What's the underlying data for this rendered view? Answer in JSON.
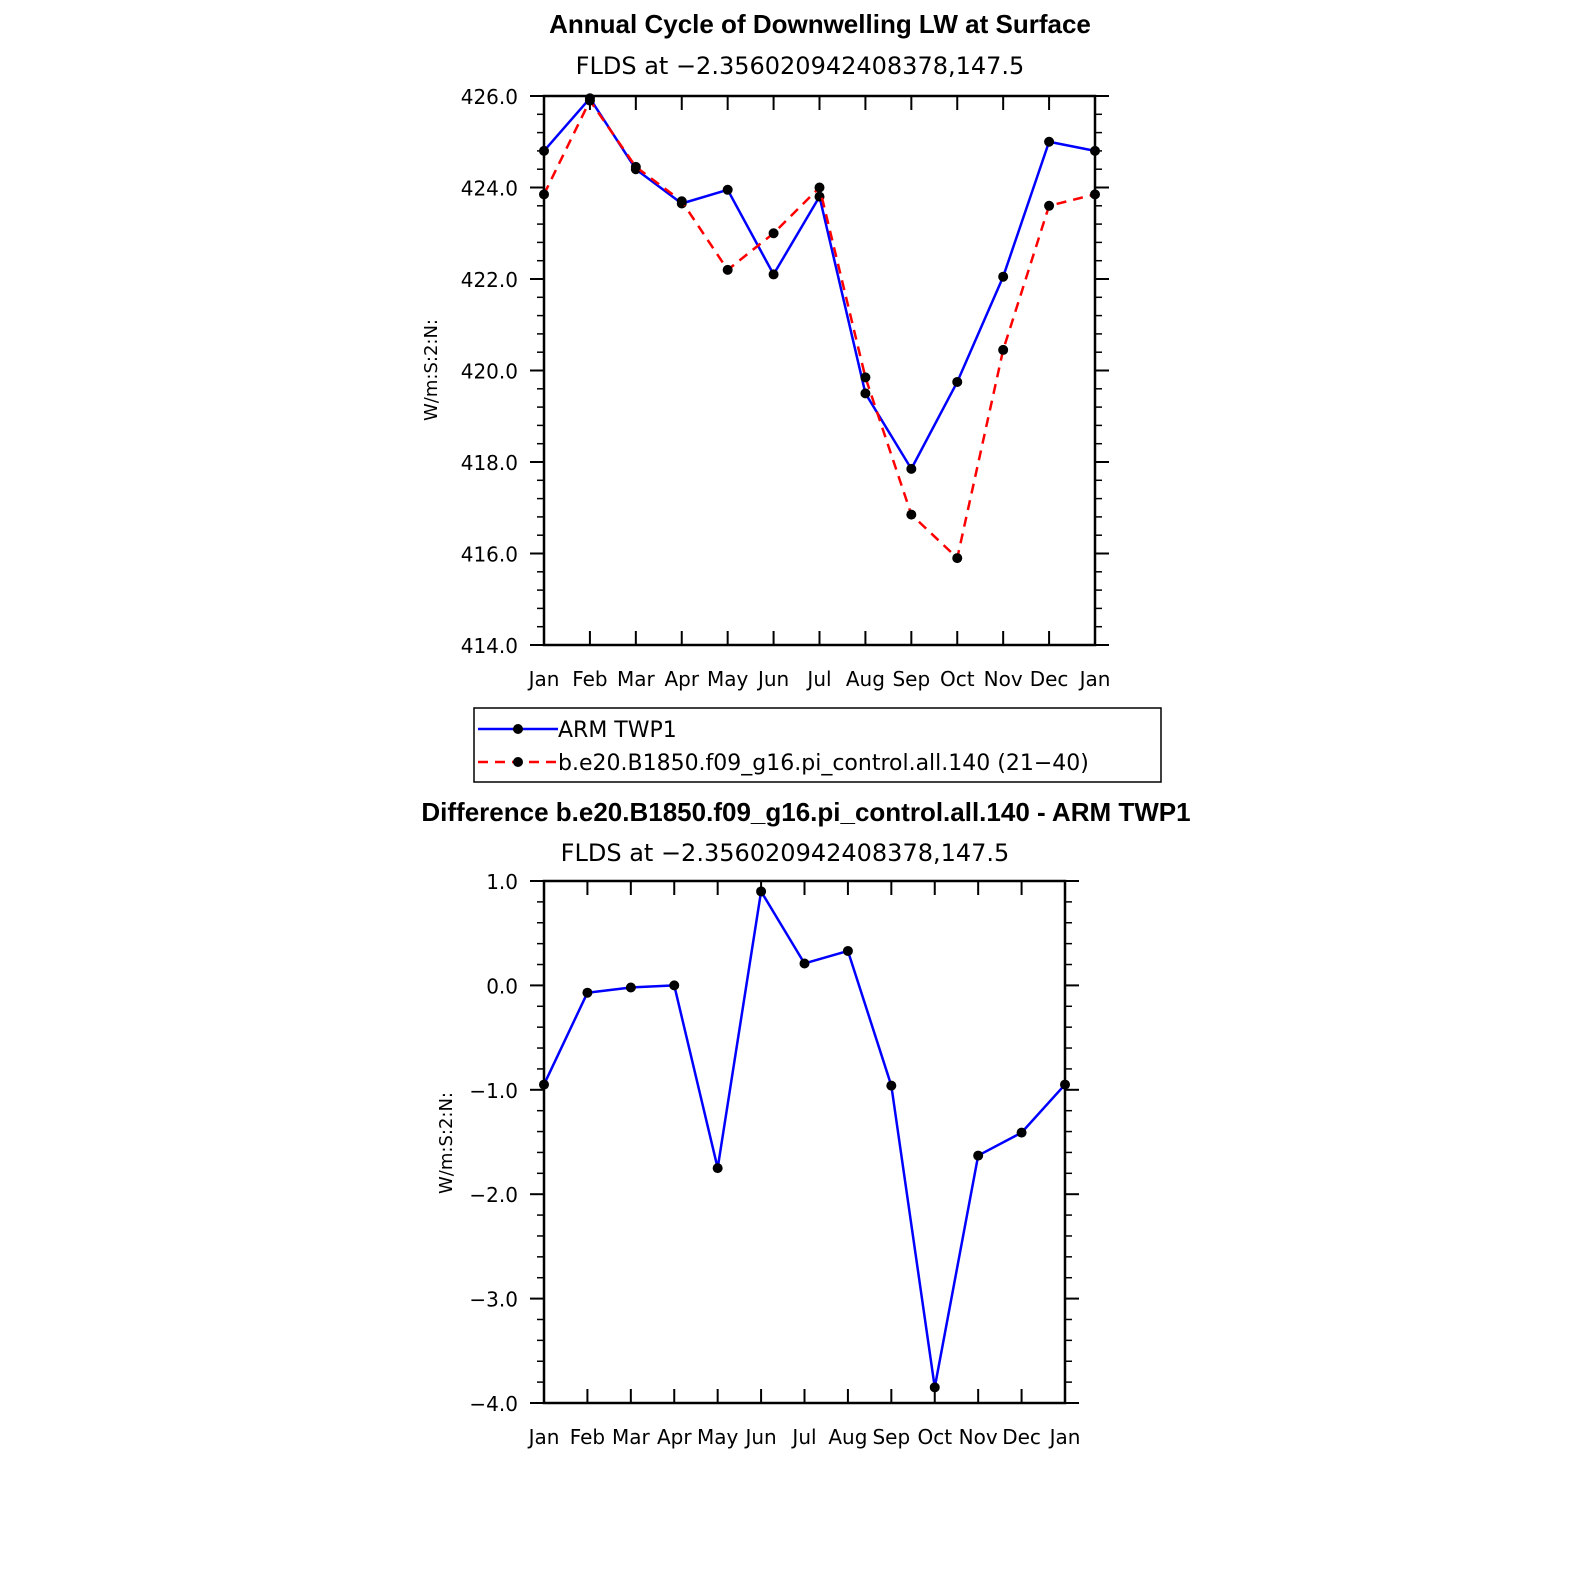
{
  "chart_data": [
    {
      "type": "line",
      "title": "Annual Cycle of Downwelling LW at Surface",
      "subtitle": "FLDS at −2.356020942408378,147.5",
      "ylabel": "W/m:S:2:N:",
      "xlabel": "",
      "categories": [
        "Jan",
        "Feb",
        "Mar",
        "Apr",
        "May",
        "Jun",
        "Jul",
        "Aug",
        "Sep",
        "Oct",
        "Nov",
        "Dec",
        "Jan"
      ],
      "ylim": [
        414.0,
        426.0
      ],
      "yticks": [
        414.0,
        416.0,
        418.0,
        420.0,
        422.0,
        424.0,
        426.0
      ],
      "ytick_labels": [
        "414.0",
        "416.0",
        "418.0",
        "420.0",
        "422.0",
        "424.0",
        "426.0"
      ],
      "grid": false,
      "legend_position": "bottom",
      "series": [
        {
          "name": "ARM TWP1",
          "color": "#0000ff",
          "dash": "solid",
          "values": [
            424.8,
            425.95,
            424.4,
            423.65,
            423.95,
            422.1,
            423.8,
            419.5,
            417.85,
            419.75,
            422.05,
            425.0,
            424.8
          ]
        },
        {
          "name": "b.e20.B1850.f09_g16.pi_control.all.140 (21−40)",
          "color": "#ff0000",
          "dash": "dashed",
          "values": [
            423.85,
            425.9,
            424.45,
            423.7,
            422.2,
            423.0,
            424.0,
            419.85,
            416.85,
            415.9,
            420.45,
            423.6,
            423.85
          ]
        }
      ]
    },
    {
      "type": "line",
      "title": "Difference b.e20.B1850.f09_g16.pi_control.all.140 - ARM TWP1",
      "subtitle": "FLDS at −2.356020942408378,147.5",
      "ylabel": "W/m:S:2:N:",
      "xlabel": "",
      "categories": [
        "Jan",
        "Feb",
        "Mar",
        "Apr",
        "May",
        "Jun",
        "Jul",
        "Aug",
        "Sep",
        "Oct",
        "Nov",
        "Dec",
        "Jan"
      ],
      "ylim": [
        -4.0,
        1.0
      ],
      "yticks": [
        -4.0,
        -3.0,
        -2.0,
        -1.0,
        0.0,
        1.0
      ],
      "ytick_labels": [
        "−4.0",
        "−3.0",
        "−2.0",
        "−1.0",
        "0.0",
        "1.0"
      ],
      "grid": false,
      "series": [
        {
          "name": "",
          "color": "#0000ff",
          "dash": "solid",
          "values": [
            -0.95,
            -0.07,
            -0.02,
            0.0,
            -1.75,
            0.9,
            0.21,
            0.33,
            -0.96,
            -3.85,
            -1.63,
            -1.41,
            -0.95
          ]
        }
      ]
    }
  ]
}
